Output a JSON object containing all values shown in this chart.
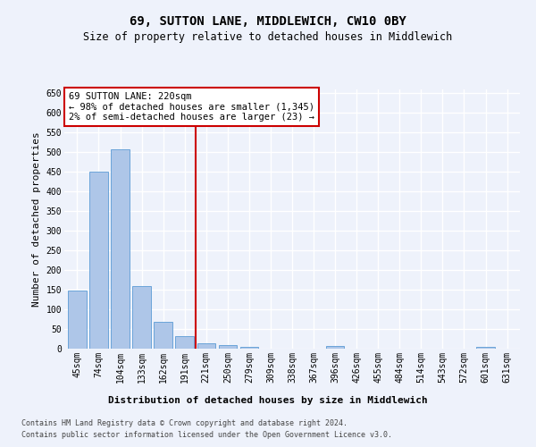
{
  "title": "69, SUTTON LANE, MIDDLEWICH, CW10 0BY",
  "subtitle": "Size of property relative to detached houses in Middlewich",
  "xlabel": "Distribution of detached houses by size in Middlewich",
  "ylabel": "Number of detached properties",
  "footer_line1": "Contains HM Land Registry data © Crown copyright and database right 2024.",
  "footer_line2": "Contains public sector information licensed under the Open Government Licence v3.0.",
  "categories": [
    "45sqm",
    "74sqm",
    "104sqm",
    "133sqm",
    "162sqm",
    "191sqm",
    "221sqm",
    "250sqm",
    "279sqm",
    "309sqm",
    "338sqm",
    "367sqm",
    "396sqm",
    "426sqm",
    "455sqm",
    "484sqm",
    "514sqm",
    "543sqm",
    "572sqm",
    "601sqm",
    "631sqm"
  ],
  "values": [
    148,
    450,
    507,
    160,
    68,
    31,
    13,
    9,
    4,
    0,
    0,
    0,
    6,
    0,
    0,
    0,
    0,
    0,
    0,
    5,
    0
  ],
  "bar_color": "#aec6e8",
  "bar_edge_color": "#5b9bd5",
  "subject_line_color": "#cc0000",
  "annotation_line1": "69 SUTTON LANE: 220sqm",
  "annotation_line2": "← 98% of detached houses are smaller (1,345)",
  "annotation_line3": "2% of semi-detached houses are larger (23) →",
  "annotation_box_color": "#ffffff",
  "annotation_box_edge_color": "#cc0000",
  "ylim": [
    0,
    660
  ],
  "yticks": [
    0,
    50,
    100,
    150,
    200,
    250,
    300,
    350,
    400,
    450,
    500,
    550,
    600,
    650
  ],
  "bg_color": "#eef2fb",
  "plot_bg_color": "#eef2fb",
  "grid_color": "#ffffff",
  "title_fontsize": 10,
  "subtitle_fontsize": 8.5,
  "xlabel_fontsize": 8,
  "ylabel_fontsize": 8,
  "tick_fontsize": 7,
  "annotation_fontsize": 7.5,
  "footer_fontsize": 6
}
